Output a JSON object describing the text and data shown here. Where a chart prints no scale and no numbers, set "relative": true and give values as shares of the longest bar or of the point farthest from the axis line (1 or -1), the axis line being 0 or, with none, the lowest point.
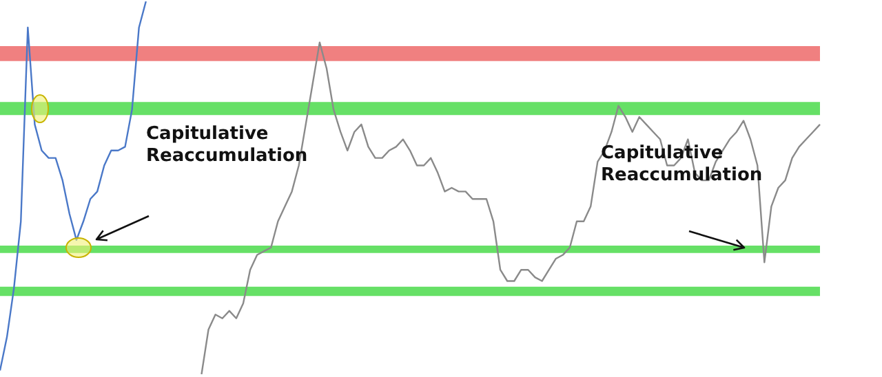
{
  "chart_data": {
    "type": "line",
    "relative": true,
    "marker": "none",
    "legend": false,
    "categories": [
      null,
      null,
      null,
      null,
      null,
      null,
      null,
      null,
      null,
      null,
      null,
      null,
      null,
      null,
      null,
      null,
      null,
      null,
      null,
      null,
      null,
      null,
      null,
      null,
      null,
      null,
      null,
      null,
      null,
      null,
      null,
      null,
      null,
      null,
      null,
      null,
      null,
      null,
      null,
      null,
      null,
      null,
      null,
      null,
      null,
      null,
      null,
      null,
      null,
      null,
      null,
      null,
      null,
      null,
      null,
      null,
      null,
      null,
      null,
      null,
      null,
      null,
      null,
      null,
      null,
      null,
      null,
      null,
      null,
      null,
      null,
      null,
      null,
      null,
      null,
      null,
      null,
      null,
      null,
      null,
      null,
      null,
      null,
      null,
      null,
      null,
      null,
      null,
      null,
      null,
      null,
      null,
      null,
      null,
      null,
      null,
      null,
      null,
      null,
      null,
      null,
      null,
      null,
      null,
      null,
      null,
      null,
      null,
      null,
      null,
      null,
      null,
      null,
      null,
      null,
      null,
      null,
      null,
      null
    ],
    "series": [
      {
        "color": "#4a78c8",
        "values": [
          0.01,
          0.1,
          0.23,
          0.41,
          0.93,
          0.67,
          0.6,
          0.58,
          0.58,
          0.52,
          0.43,
          0.36,
          0.41,
          0.47,
          0.49,
          0.56,
          0.6,
          0.6,
          0.61,
          0.71,
          0.93,
          1,
          null,
          null,
          null,
          null,
          null,
          null,
          null,
          null,
          null,
          null,
          null,
          null,
          null,
          null,
          null,
          null,
          null,
          null,
          null,
          null,
          null,
          null,
          null,
          null,
          null,
          null,
          null,
          null,
          null,
          null,
          null,
          null,
          null,
          null,
          null,
          null,
          null,
          null,
          null,
          null,
          null,
          null,
          null,
          null,
          null,
          null,
          null,
          null,
          null,
          null,
          null,
          null,
          null,
          null,
          null,
          null,
          null,
          null,
          null,
          null,
          null,
          null,
          null,
          null,
          null,
          null,
          null,
          null,
          null,
          null,
          null,
          null,
          null,
          null,
          null,
          null,
          null,
          null,
          null,
          null,
          null,
          null,
          null,
          null,
          null,
          null,
          null,
          null,
          null,
          null,
          null,
          null,
          null,
          null,
          null,
          null,
          null
        ]
      },
      {
        "color": "#8a8a8a",
        "values": [
          null,
          null,
          null,
          null,
          null,
          null,
          null,
          null,
          null,
          null,
          null,
          null,
          null,
          null,
          null,
          null,
          null,
          null,
          null,
          null,
          null,
          null,
          null,
          null,
          null,
          null,
          null,
          null,
          null,
          0,
          0.12,
          0.16,
          0.15,
          0.17,
          0.15,
          0.19,
          0.28,
          0.32,
          0.33,
          0.34,
          0.41,
          0.45,
          0.49,
          0.56,
          0.67,
          0.78,
          0.89,
          0.82,
          0.71,
          0.65,
          0.6,
          0.65,
          0.67,
          0.61,
          0.58,
          0.58,
          0.6,
          0.61,
          0.63,
          0.6,
          0.56,
          0.56,
          0.58,
          0.54,
          0.49,
          0.5,
          0.49,
          0.49,
          0.47,
          0.47,
          0.47,
          0.41,
          0.28,
          0.25,
          0.25,
          0.28,
          0.28,
          0.26,
          0.25,
          0.28,
          0.31,
          0.32,
          0.34,
          0.41,
          0.41,
          0.45,
          0.57,
          0.6,
          0.65,
          0.72,
          0.69,
          0.65,
          0.69,
          0.67,
          0.65,
          0.63,
          0.56,
          0.56,
          0.58,
          0.63,
          0.54,
          0.52,
          0.52,
          0.57,
          0.6,
          0.63,
          0.65,
          0.68,
          0.63,
          0.56,
          0.3,
          0.45,
          0.5,
          0.52,
          0.58,
          0.61,
          0.63,
          0.65,
          0.67
        ]
      }
    ],
    "bands": [
      {
        "axis": "y",
        "from": 0.84,
        "to": 0.88,
        "color": "#f08080"
      },
      {
        "axis": "y",
        "from": 0.695,
        "to": 0.73,
        "color": "#66e066"
      },
      {
        "axis": "y",
        "from": 0.325,
        "to": 0.345,
        "color": "#66e066"
      },
      {
        "axis": "y",
        "from": 0.21,
        "to": 0.235,
        "color": "#66e066"
      }
    ],
    "annotations": [
      "Capitulative Reaccumulation",
      "Capitulative Reaccumulation"
    ]
  }
}
